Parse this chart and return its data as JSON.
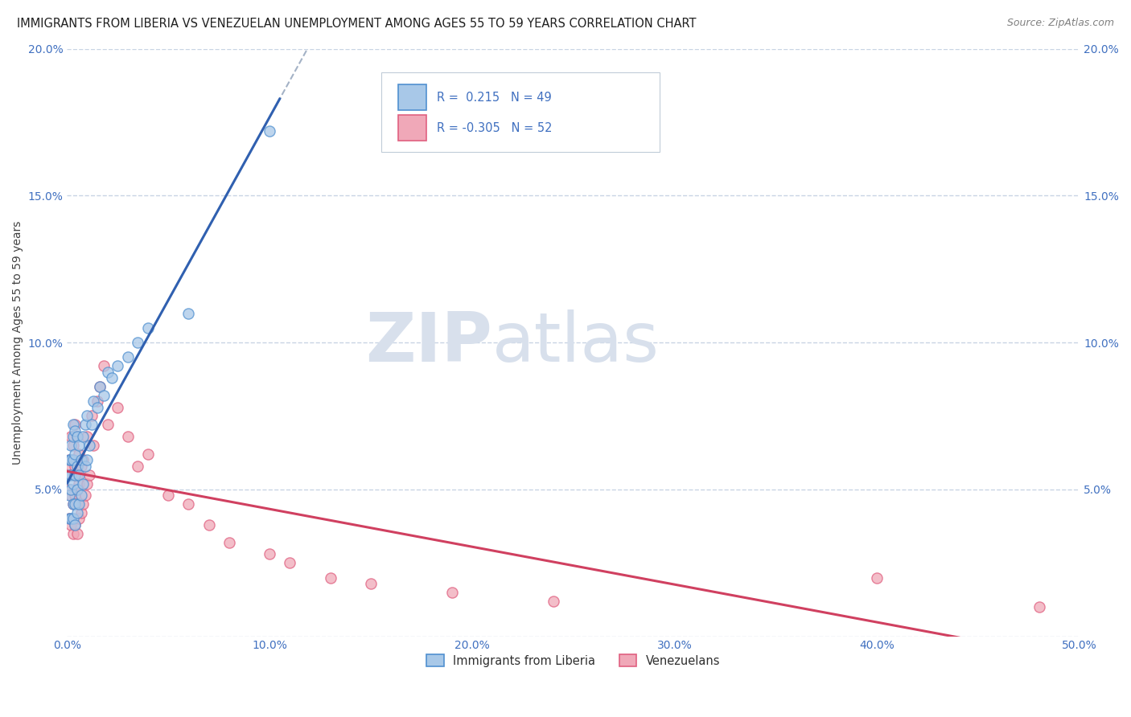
{
  "title": "IMMIGRANTS FROM LIBERIA VS VENEZUELAN UNEMPLOYMENT AMONG AGES 55 TO 59 YEARS CORRELATION CHART",
  "source": "Source: ZipAtlas.com",
  "ylabel": "Unemployment Among Ages 55 to 59 years",
  "xlim": [
    0,
    0.5
  ],
  "ylim": [
    0,
    0.2
  ],
  "xticks": [
    0.0,
    0.1,
    0.2,
    0.3,
    0.4,
    0.5
  ],
  "xticklabels": [
    "0.0%",
    "10.0%",
    "20.0%",
    "30.0%",
    "40.0%",
    "50.0%"
  ],
  "yticks": [
    0.0,
    0.05,
    0.1,
    0.15,
    0.2
  ],
  "yticklabels": [
    "",
    "5.0%",
    "10.0%",
    "15.0%",
    "20.0%"
  ],
  "legend_labels": [
    "Immigrants from Liberia",
    "Venezuelans"
  ],
  "legend_r_blue": "R =  0.215   N = 49",
  "legend_r_pink": "R = -0.305   N = 52",
  "blue_face": "#a8c8e8",
  "blue_edge": "#5090d0",
  "pink_face": "#f0a8b8",
  "pink_edge": "#e06080",
  "blue_line": "#3060b0",
  "pink_line": "#d04060",
  "dashed_line": "#9aaac0",
  "watermark_color": "#d8e0ec",
  "tick_color": "#4070c0",
  "grid_color": "#c8d4e4",
  "title_color": "#202020",
  "source_color": "#808080",
  "ylabel_color": "#404040",
  "background": "#ffffff",
  "blue_x": [
    0.001,
    0.001,
    0.001,
    0.001,
    0.002,
    0.002,
    0.002,
    0.002,
    0.002,
    0.003,
    0.003,
    0.003,
    0.003,
    0.003,
    0.003,
    0.004,
    0.004,
    0.004,
    0.004,
    0.004,
    0.005,
    0.005,
    0.005,
    0.005,
    0.006,
    0.006,
    0.006,
    0.007,
    0.007,
    0.008,
    0.008,
    0.009,
    0.009,
    0.01,
    0.01,
    0.011,
    0.012,
    0.013,
    0.015,
    0.016,
    0.018,
    0.02,
    0.022,
    0.025,
    0.03,
    0.035,
    0.04,
    0.06,
    0.1
  ],
  "blue_y": [
    0.04,
    0.048,
    0.055,
    0.06,
    0.04,
    0.05,
    0.055,
    0.06,
    0.065,
    0.04,
    0.045,
    0.052,
    0.06,
    0.068,
    0.072,
    0.038,
    0.045,
    0.055,
    0.062,
    0.07,
    0.042,
    0.05,
    0.058,
    0.068,
    0.045,
    0.055,
    0.065,
    0.048,
    0.06,
    0.052,
    0.068,
    0.058,
    0.072,
    0.06,
    0.075,
    0.065,
    0.072,
    0.08,
    0.078,
    0.085,
    0.082,
    0.09,
    0.088,
    0.092,
    0.095,
    0.1,
    0.105,
    0.11,
    0.172
  ],
  "pink_x": [
    0.001,
    0.001,
    0.001,
    0.002,
    0.002,
    0.002,
    0.002,
    0.003,
    0.003,
    0.003,
    0.003,
    0.004,
    0.004,
    0.004,
    0.004,
    0.005,
    0.005,
    0.005,
    0.005,
    0.006,
    0.006,
    0.006,
    0.007,
    0.007,
    0.008,
    0.008,
    0.009,
    0.01,
    0.01,
    0.011,
    0.012,
    0.013,
    0.015,
    0.016,
    0.018,
    0.02,
    0.025,
    0.03,
    0.035,
    0.04,
    0.05,
    0.06,
    0.07,
    0.08,
    0.1,
    0.11,
    0.13,
    0.15,
    0.19,
    0.24,
    0.4,
    0.48
  ],
  "pink_y": [
    0.04,
    0.05,
    0.06,
    0.038,
    0.048,
    0.058,
    0.068,
    0.035,
    0.045,
    0.055,
    0.065,
    0.038,
    0.048,
    0.058,
    0.072,
    0.035,
    0.045,
    0.055,
    0.068,
    0.04,
    0.052,
    0.062,
    0.042,
    0.058,
    0.045,
    0.06,
    0.048,
    0.052,
    0.068,
    0.055,
    0.075,
    0.065,
    0.08,
    0.085,
    0.092,
    0.072,
    0.078,
    0.068,
    0.058,
    0.062,
    0.048,
    0.045,
    0.038,
    0.032,
    0.028,
    0.025,
    0.02,
    0.018,
    0.015,
    0.012,
    0.02,
    0.01
  ]
}
